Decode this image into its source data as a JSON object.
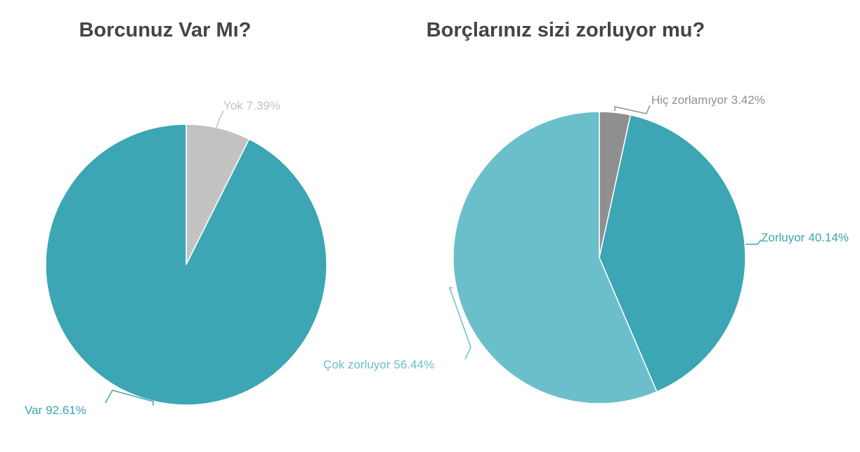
{
  "chart_data": [
    {
      "type": "pie",
      "title": "Borcunuz Var Mı?",
      "categories": [
        "Yok",
        "Var"
      ],
      "values": [
        7.39,
        92.61
      ],
      "value_labels": [
        "7.39%",
        "92.61%"
      ],
      "colors": [
        "#c2c2c2",
        "#3ca6b4"
      ]
    },
    {
      "type": "pie",
      "title": "Borçlarınız sizi zorluyor mu?",
      "categories": [
        "Hiç zorlamıyor",
        "Zorluyor",
        "Çok zorluyor"
      ],
      "values": [
        3.42,
        40.14,
        56.44
      ],
      "value_labels": [
        "3.42%",
        "40.14%",
        "56.44%"
      ],
      "colors": [
        "#8f8f8f",
        "#3ca6b4",
        "#6bbfca"
      ]
    }
  ]
}
